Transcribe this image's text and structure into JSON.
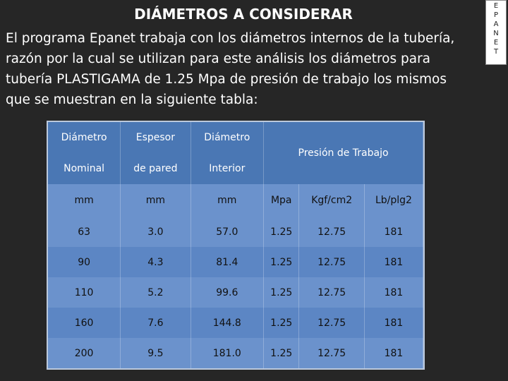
{
  "header": {
    "title": "DIÁMETROS A CONSIDERAR",
    "side_label": "EPANET"
  },
  "body": {
    "paragraph": "El programa Epanet trabaja con los diámetros internos de la tubería, razón por la cual se utilizan para este análisis los diámetros para tubería PLASTIGAMA de 1.25 Mpa de presión de trabajo los mismos que se muestran en la siguiente tabla:"
  },
  "table": {
    "header_columns": [
      [
        "Diámetro",
        "Nominal"
      ],
      [
        "Espesor",
        "de pared"
      ],
      [
        "Diámetro",
        "Interior"
      ]
    ],
    "pressure_header": "Presión de Trabajo",
    "units": [
      "mm",
      "mm",
      "mm",
      "Mpa",
      "Kgf/cm2",
      "Lb/plg2"
    ],
    "rows": [
      [
        "63",
        "3.0",
        "57.0",
        "1.25",
        "12.75",
        "181"
      ],
      [
        "90",
        "4.3",
        "81.4",
        "1.25",
        "12.75",
        "181"
      ],
      [
        "110",
        "5.2",
        "99.6",
        "1.25",
        "12.75",
        "181"
      ],
      [
        "160",
        "7.6",
        "144.8",
        "1.25",
        "12.75",
        "181"
      ],
      [
        "200",
        "9.5",
        "181.0",
        "1.25",
        "12.75",
        "181"
      ]
    ]
  }
}
